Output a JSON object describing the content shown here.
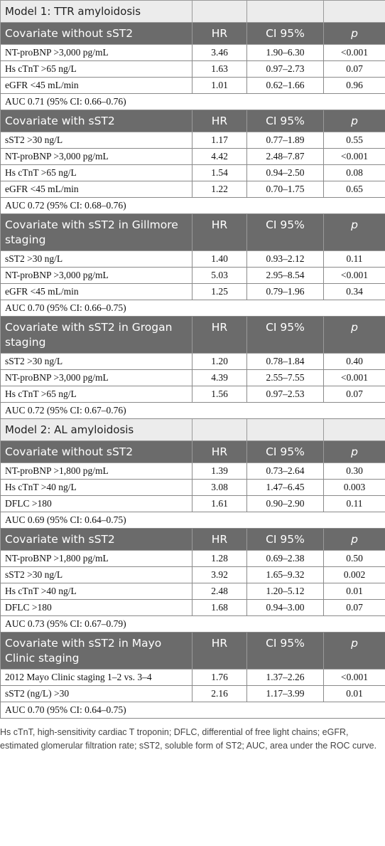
{
  "headers": {
    "hr": "HR",
    "ci": "CI 95%",
    "p": "p"
  },
  "sections": [
    {
      "model_title": "Model 1: TTR amyloidosis",
      "title": "Covariate without sST2",
      "rows": [
        {
          "covariate": "NT-proBNP >3,000 pg/mL",
          "hr": "3.46",
          "ci": "1.90–6.30",
          "p": "<0.001"
        },
        {
          "covariate": "Hs cTnT >65 ng/L",
          "hr": "1.63",
          "ci": "0.97–2.73",
          "p": "0.07"
        },
        {
          "covariate": "eGFR <45 mL/min",
          "hr": "1.01",
          "ci": "0.62–1.66",
          "p": "0.96"
        }
      ],
      "auc": "AUC 0.71 (95% CI: 0.66–0.76)"
    },
    {
      "title": "Covariate with sST2",
      "rows": [
        {
          "covariate": "sST2 >30 ng/L",
          "hr": "1.17",
          "ci": "0.77–1.89",
          "p": "0.55"
        },
        {
          "covariate": "NT-proBNP >3,000 pg/mL",
          "hr": "4.42",
          "ci": "2.48–7.87",
          "p": "<0.001"
        },
        {
          "covariate": "Hs cTnT >65 ng/L",
          "hr": "1.54",
          "ci": "0.94–2.50",
          "p": "0.08"
        },
        {
          "covariate": "eGFR <45 mL/min",
          "hr": "1.22",
          "ci": "0.70–1.75",
          "p": "0.65"
        }
      ],
      "auc": "AUC 0.72 (95% CI: 0.68–0.76)"
    },
    {
      "title": "Covariate with sST2 in Gillmore staging",
      "rows": [
        {
          "covariate": "sST2 >30 ng/L",
          "hr": "1.40",
          "ci": "0.93–2.12",
          "p": "0.11"
        },
        {
          "covariate": "NT-proBNP >3,000 pg/mL",
          "hr": "5.03",
          "ci": "2.95–8.54",
          "p": "<0.001"
        },
        {
          "covariate": "eGFR <45 mL/min",
          "hr": "1.25",
          "ci": "0.79–1.96",
          "p": "0.34"
        }
      ],
      "auc": "AUC 0.70 (95% CI: 0.66–0.75)"
    },
    {
      "title": "Covariate with sST2 in Grogan staging",
      "rows": [
        {
          "covariate": "sST2 >30 ng/L",
          "hr": "1.20",
          "ci": "0.78–1.84",
          "p": "0.40"
        },
        {
          "covariate": "NT-proBNP >3,000 pg/mL",
          "hr": "4.39",
          "ci": "2.55–7.55",
          "p": "<0.001"
        },
        {
          "covariate": "Hs cTnT >65 ng/L",
          "hr": "1.56",
          "ci": "0.97–2.53",
          "p": "0.07"
        }
      ],
      "auc": "AUC 0.72 (95% CI: 0.67–0.76)"
    },
    {
      "model_title": "Model 2: AL amyloidosis",
      "title": "Covariate without sST2",
      "rows": [
        {
          "covariate": "NT-proBNP >1,800 pg/mL",
          "hr": "1.39",
          "ci": "0.73–2.64",
          "p": "0.30"
        },
        {
          "covariate": "Hs cTnT >40 ng/L",
          "hr": "3.08",
          "ci": "1.47–6.45",
          "p": "0.003"
        },
        {
          "covariate": "DFLC >180",
          "hr": "1.61",
          "ci": "0.90–2.90",
          "p": "0.11"
        }
      ],
      "auc": "AUC 0.69 (95% CI: 0.64–0.75)"
    },
    {
      "title": "Covariate with sST2",
      "rows": [
        {
          "covariate": "NT-proBNP >1,800 pg/mL",
          "hr": "1.28",
          "ci": "0.69–2.38",
          "p": "0.50"
        },
        {
          "covariate": "sST2 >30 ng/L",
          "hr": "3.92",
          "ci": "1.65–9.32",
          "p": "0.002"
        },
        {
          "covariate": "Hs cTnT >40 ng/L",
          "hr": "2.48",
          "ci": "1.20–5.12",
          "p": "0.01"
        },
        {
          "covariate": "DFLC >180",
          "hr": "1.68",
          "ci": "0.94–3.00",
          "p": "0.07"
        }
      ],
      "auc": "AUC 0.73 (95% CI: 0.67–0.79)"
    },
    {
      "title": "Covariate with sST2 in Mayo Clinic staging",
      "rows": [
        {
          "covariate": "2012 Mayo Clinic staging 1–2 vs. 3–4",
          "hr": "1.76",
          "ci": "1.37–2.26",
          "p": "<0.001"
        },
        {
          "covariate": "sST2 (ng/L) >30",
          "hr": "2.16",
          "ci": "1.17–3.99",
          "p": "0.01"
        }
      ],
      "auc": "AUC 0.70 (95% CI: 0.64–0.75)"
    }
  ],
  "footnote": "Hs cTnT, high-sensitivity cardiac T troponin; DFLC, differential of free light chains; eGFR, estimated glomerular filtration rate; sST2, soluble form of ST2; AUC, area under the ROC curve."
}
